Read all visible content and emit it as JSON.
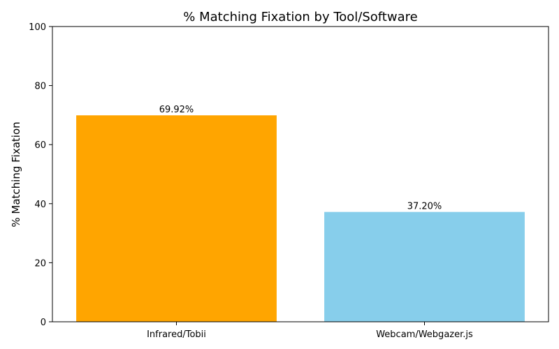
{
  "chart_data": {
    "type": "bar",
    "title": "% Matching Fixation by Tool/Software",
    "xlabel": "",
    "ylabel": "% Matching Fixation",
    "categories": [
      "Infrared/Tobii",
      "Webcam/Webgazer.js"
    ],
    "values": [
      69.92,
      37.2
    ],
    "value_labels": [
      "69.92%",
      "37.20%"
    ],
    "colors": [
      "#FFA500",
      "#87CEEB"
    ],
    "ylim": [
      0,
      100
    ],
    "yticks": [
      0,
      20,
      40,
      60,
      80,
      100
    ],
    "grid": false,
    "legend": "none"
  }
}
